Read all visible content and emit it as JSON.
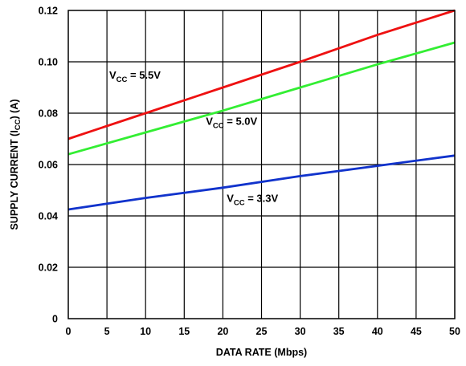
{
  "chart_data": {
    "type": "line",
    "xlabel": "DATA RATE (Mbps)",
    "ylabel": {
      "prefix": "SUPPLY CURRENT (I",
      "sub": "CC",
      "suffix": ") (A)"
    },
    "xlim": [
      0,
      50
    ],
    "ylim": [
      0,
      0.12
    ],
    "x_ticks": [
      "0",
      "5",
      "10",
      "15",
      "20",
      "25",
      "30",
      "35",
      "40",
      "45",
      "50"
    ],
    "y_ticks": [
      "0",
      "0.02",
      "0.04",
      "0.06",
      "0.08",
      "0.10",
      "0.12"
    ],
    "grid": true,
    "legend": "none (inline labels)",
    "series": [
      {
        "name": "VCC = 5.5V",
        "label_parts": {
          "main": "V",
          "sub": "CC",
          "rest": " = 5.5V"
        },
        "color": "#ee1111",
        "x": [
          0,
          10,
          20,
          30,
          40,
          50
        ],
        "y": [
          0.07,
          0.08,
          0.09,
          0.1,
          0.1105,
          0.12
        ]
      },
      {
        "name": "VCC = 5.0V",
        "label_parts": {
          "main": "V",
          "sub": "CC",
          "rest": " = 5.0V"
        },
        "color": "#33ee33",
        "x": [
          0,
          10,
          20,
          30,
          40,
          50
        ],
        "y": [
          0.064,
          0.0725,
          0.081,
          0.09,
          0.099,
          0.1075
        ]
      },
      {
        "name": "VCC = 3.3V",
        "label_parts": {
          "main": "V",
          "sub": "CC",
          "rest": " = 3.3V"
        },
        "color": "#1133cc",
        "x": [
          0,
          10,
          20,
          30,
          40,
          50
        ],
        "y": [
          0.0425,
          0.047,
          0.051,
          0.0555,
          0.0595,
          0.0635
        ]
      }
    ]
  }
}
